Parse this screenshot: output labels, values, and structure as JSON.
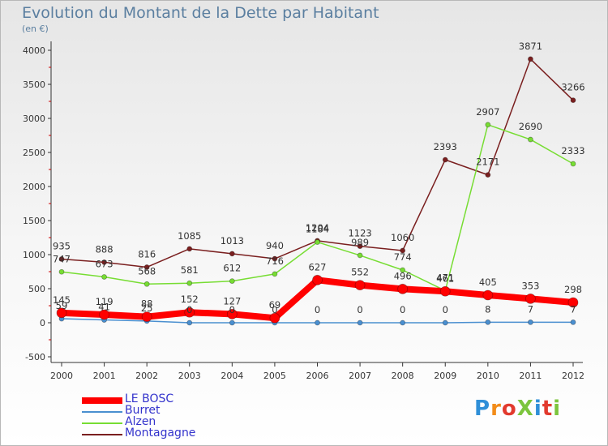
{
  "title": "Evolution du Montant de la Dette par Habitant",
  "subtitle": "(en €)",
  "brand": "ProXiti",
  "chart_data": {
    "type": "line",
    "x": [
      "2000",
      "2001",
      "2002",
      "2003",
      "2004",
      "2005",
      "2006",
      "2007",
      "2008",
      "2009",
      "2010",
      "2011",
      "2012"
    ],
    "ylim": [
      -500,
      4000
    ],
    "yticks": [
      -500,
      0,
      500,
      1000,
      1500,
      2000,
      2500,
      3000,
      3500,
      4000
    ],
    "grid": false,
    "legend_position": "bottom-left",
    "series": [
      {
        "name": "LE BOSC",
        "color": "#ff0000",
        "values": [
          145,
          119,
          88,
          152,
          127,
          69,
          627,
          552,
          496,
          461,
          405,
          353,
          298
        ],
        "labels": [
          "145",
          "119",
          "88",
          "152",
          "127",
          "69",
          "627",
          "552",
          "496",
          "461",
          "405",
          "353",
          "298"
        ]
      },
      {
        "name": "Burret",
        "color": "#4a8fd0",
        "values": [
          59,
          41,
          25,
          0,
          0,
          0,
          0,
          0,
          0,
          0,
          8,
          7,
          7
        ],
        "labels": [
          "59",
          "41",
          "25",
          "0",
          "0",
          "0",
          "0",
          "0",
          "0",
          "0",
          "8",
          "7",
          "7"
        ]
      },
      {
        "name": "Alzen",
        "color": "#77dd33",
        "values": [
          747,
          673,
          568,
          581,
          612,
          716,
          1184,
          989,
          774,
          471,
          2907,
          2690,
          2333
        ],
        "labels": [
          "747",
          "673",
          "568",
          "581",
          "612",
          "716",
          "1184",
          "989",
          "774",
          "471",
          "2907",
          "2690",
          "2333"
        ]
      },
      {
        "name": "Montagagne",
        "color": "#7a1f1f",
        "values": [
          935,
          888,
          816,
          1085,
          1013,
          940,
          1204,
          1123,
          1060,
          2393,
          2171,
          3871,
          3266
        ],
        "labels": [
          "935",
          "888",
          "816",
          "1085",
          "1013",
          "940",
          "1204",
          "1123",
          "1060",
          "2393",
          "2171",
          "3871",
          "3266"
        ]
      }
    ]
  }
}
